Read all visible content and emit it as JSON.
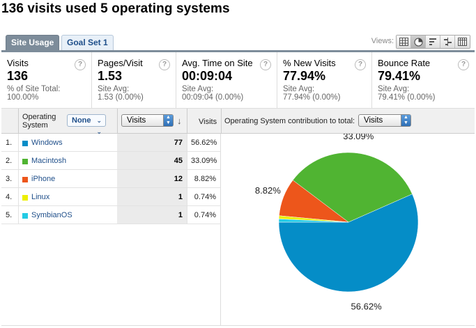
{
  "page": {
    "title": "136 visits used 5 operating systems"
  },
  "tabs": [
    {
      "label": "Site Usage",
      "active": true
    },
    {
      "label": "Goal Set 1",
      "active": false
    }
  ],
  "views": {
    "label": "Views:",
    "buttons": [
      "table-view-icon",
      "pie-view-icon",
      "performance-view-icon",
      "comparison-view-icon",
      "pivot-view-icon"
    ],
    "active_index": 1
  },
  "metrics": [
    {
      "label": "Visits",
      "value": "136",
      "sub1": "% of Site Total:",
      "sub2": "100.00%"
    },
    {
      "label": "Pages/Visit",
      "value": "1.53",
      "sub1": "Site Avg:",
      "sub2": "1.53 (0.00%)"
    },
    {
      "label": "Avg. Time on Site",
      "value": "00:09:04",
      "sub1": "Site Avg:",
      "sub2": "00:09:04 (0.00%)"
    },
    {
      "label": "% New Visits",
      "value": "77.94%",
      "sub1": "Site Avg:",
      "sub2": "77.94% (0.00%)"
    },
    {
      "label": "Bounce Rate",
      "value": "79.41%",
      "sub1": "Site Avg:",
      "sub2": "79.41% (0.00%)"
    }
  ],
  "table": {
    "dimension_label": "Operating System",
    "segment_button": "None",
    "metric_select": "Visits",
    "visits_col": "Visits",
    "contribution_label": "Operating System contribution to total:",
    "contribution_select": "Visits",
    "rows": [
      {
        "num": "1.",
        "name": "Windows",
        "visits": "77",
        "pct": "56.62%"
      },
      {
        "num": "2.",
        "name": "Macintosh",
        "visits": "45",
        "pct": "33.09%"
      },
      {
        "num": "3.",
        "name": "iPhone",
        "visits": "12",
        "pct": "8.82%"
      },
      {
        "num": "4.",
        "name": "Linux",
        "visits": "1",
        "pct": "0.74%"
      },
      {
        "num": "5.",
        "name": "SymbianOS",
        "visits": "1",
        "pct": "0.74%"
      }
    ]
  },
  "colors": {
    "Windows": "#058dc7",
    "Macintosh": "#50b432",
    "iPhone": "#ed561b",
    "Linux": "#edef00",
    "SymbianOS": "#24cbe5"
  },
  "chart_data": {
    "type": "pie",
    "categories": [
      "Windows",
      "Macintosh",
      "iPhone",
      "Linux",
      "SymbianOS"
    ],
    "values": [
      77,
      45,
      12,
      1,
      1
    ],
    "labels": [
      "56.62%",
      "33.09%",
      "8.82%",
      "",
      ""
    ]
  }
}
